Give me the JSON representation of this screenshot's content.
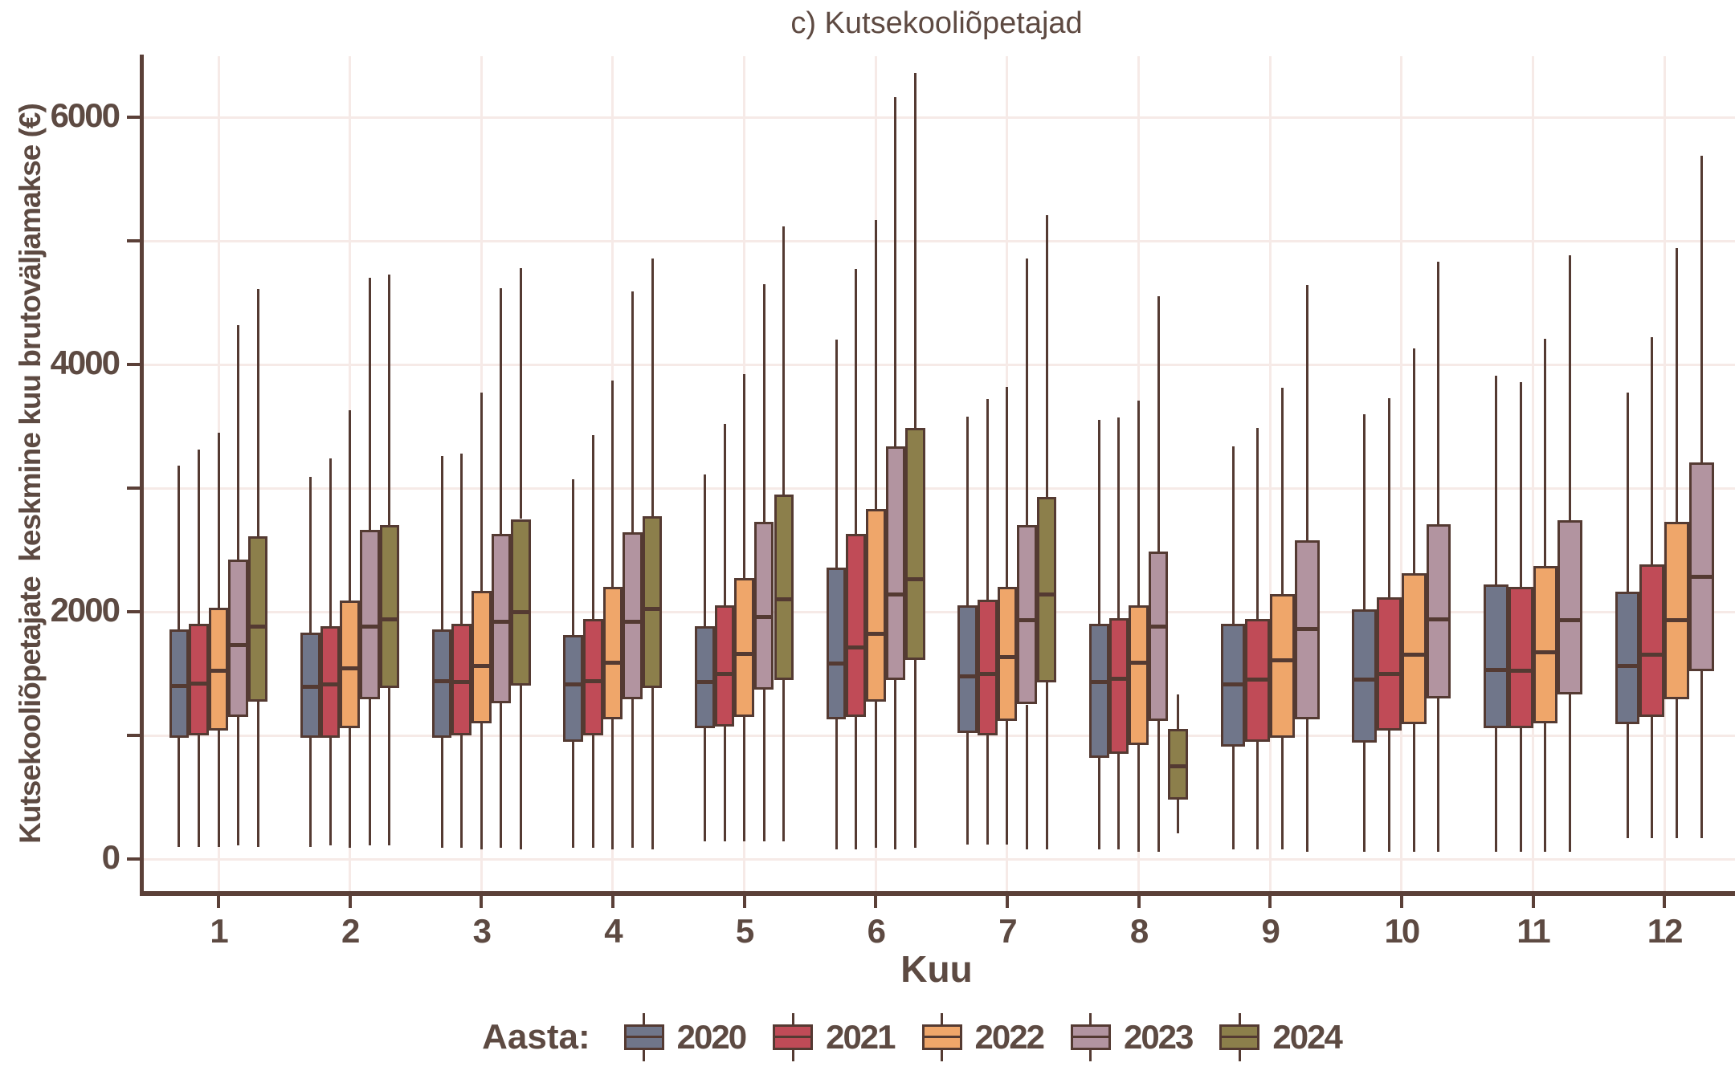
{
  "title": "c) Kutsekooliõpetajad",
  "axes": {
    "y_label": "Kutsekooliõpetajate  keskmine kuu brutoväljamakse (€)",
    "x_label": "Kuu",
    "y_tick_values": [
      0,
      2000,
      4000,
      6000
    ],
    "y_tick_labels": [
      "0",
      "2000",
      "4000",
      "6000"
    ],
    "y_gridline_values": [
      0,
      1000,
      2000,
      3000,
      4000,
      5000,
      6000
    ],
    "x_tick_labels": [
      "1",
      "2",
      "3",
      "4",
      "5",
      "6",
      "7",
      "8",
      "9",
      "10",
      "11",
      "12"
    ]
  },
  "legend": {
    "title": "Aasta:",
    "items": [
      {
        "label": "2020",
        "color": "#70768a"
      },
      {
        "label": "2021",
        "color": "#c04b57"
      },
      {
        "label": "2022",
        "color": "#efa66a"
      },
      {
        "label": "2023",
        "color": "#b294a0"
      },
      {
        "label": "2024",
        "color": "#8c7f4b"
      }
    ]
  },
  "colors": {
    "text": "#5d4a42",
    "axis": "#5b4038",
    "box_border": "#543a32",
    "gridline": "#f6eae7",
    "background": "#ffffff"
  },
  "chart_data": {
    "type": "boxplot",
    "title": "c) Kutsekooliõpetajad",
    "xlabel": "Kuu",
    "ylabel": "Kutsekooliõpetajate keskmine kuu brutoväljamakse (€)",
    "ylim": [
      0,
      6500
    ],
    "y_labeled_ticks": [
      0,
      2000,
      4000,
      6000
    ],
    "y_gridline_step": 1000,
    "grid": "on",
    "legend_position": "bottom",
    "legend_title": "Aasta:",
    "categories": [
      "1",
      "2",
      "3",
      "4",
      "5",
      "6",
      "7",
      "8",
      "9",
      "10",
      "11",
      "12"
    ],
    "stat_order": [
      "whisker_low",
      "q1",
      "median",
      "q3",
      "whisker_high"
    ],
    "series": [
      {
        "name": "2020",
        "color": "#70768a",
        "stats": [
          [
            100,
            980,
            1400,
            1860,
            3180
          ],
          [
            100,
            980,
            1390,
            1830,
            3090
          ],
          [
            90,
            980,
            1440,
            1860,
            3260
          ],
          [
            90,
            950,
            1410,
            1810,
            3070
          ],
          [
            140,
            1060,
            1430,
            1880,
            3110
          ],
          [
            80,
            1130,
            1580,
            2360,
            4200
          ],
          [
            120,
            1020,
            1480,
            2050,
            3580
          ],
          [
            80,
            820,
            1430,
            1900,
            3550
          ],
          [
            80,
            910,
            1410,
            1900,
            3340
          ],
          [
            60,
            940,
            1450,
            2020,
            3600
          ],
          [
            60,
            1060,
            1530,
            2220,
            3910
          ],
          [
            170,
            1090,
            1560,
            2160,
            3770
          ]
        ]
      },
      {
        "name": "2021",
        "color": "#c04b57",
        "stats": [
          [
            100,
            1000,
            1420,
            1900,
            3310
          ],
          [
            110,
            980,
            1410,
            1880,
            3240
          ],
          [
            90,
            1000,
            1430,
            1900,
            3280
          ],
          [
            90,
            1000,
            1440,
            1940,
            3430
          ],
          [
            140,
            1070,
            1500,
            2050,
            3520
          ],
          [
            80,
            1150,
            1710,
            2630,
            4770
          ],
          [
            120,
            1000,
            1500,
            2100,
            3720
          ],
          [
            80,
            850,
            1460,
            1950,
            3570
          ],
          [
            80,
            950,
            1450,
            1940,
            3490
          ],
          [
            60,
            1040,
            1500,
            2120,
            3730
          ],
          [
            60,
            1060,
            1520,
            2200,
            3860
          ],
          [
            170,
            1150,
            1650,
            2380,
            4220
          ]
        ]
      },
      {
        "name": "2022",
        "color": "#efa66a",
        "stats": [
          [
            100,
            1040,
            1520,
            2030,
            3450
          ],
          [
            90,
            1060,
            1540,
            2090,
            3630
          ],
          [
            80,
            1100,
            1560,
            2170,
            3770
          ],
          [
            80,
            1130,
            1590,
            2200,
            3870
          ],
          [
            140,
            1150,
            1660,
            2270,
            3920
          ],
          [
            90,
            1270,
            1820,
            2830,
            5170
          ],
          [
            120,
            1120,
            1630,
            2200,
            3820
          ],
          [
            60,
            920,
            1590,
            2050,
            3710
          ],
          [
            80,
            980,
            1610,
            2140,
            3810
          ],
          [
            60,
            1090,
            1650,
            2310,
            4130
          ],
          [
            60,
            1100,
            1670,
            2370,
            4210
          ],
          [
            170,
            1290,
            1930,
            2730,
            4940
          ]
        ]
      },
      {
        "name": "2023",
        "color": "#b294a0",
        "stats": [
          [
            110,
            1150,
            1730,
            2420,
            4320
          ],
          [
            110,
            1290,
            1880,
            2660,
            4700
          ],
          [
            90,
            1260,
            1920,
            2630,
            4620
          ],
          [
            90,
            1290,
            1920,
            2640,
            4590
          ],
          [
            140,
            1370,
            1960,
            2730,
            4650
          ],
          [
            80,
            1450,
            2140,
            3340,
            6160
          ],
          [
            80,
            1250,
            1930,
            2700,
            4860
          ],
          [
            60,
            1120,
            1880,
            2490,
            4550
          ],
          [
            60,
            1130,
            1860,
            2580,
            4640
          ],
          [
            60,
            1300,
            1940,
            2710,
            4830
          ],
          [
            60,
            1330,
            1930,
            2740,
            4880
          ],
          [
            170,
            1520,
            2280,
            3210,
            5690
          ]
        ]
      },
      {
        "name": "2024",
        "color": "#8c7f4b",
        "stats": [
          [
            100,
            1270,
            1880,
            2610,
            4610
          ],
          [
            110,
            1380,
            1940,
            2700,
            4730
          ],
          [
            80,
            1400,
            2000,
            2750,
            4780
          ],
          [
            80,
            1380,
            2020,
            2770,
            4860
          ],
          [
            140,
            1450,
            2100,
            2950,
            5120
          ],
          [
            90,
            1610,
            2260,
            3490,
            6360
          ],
          [
            80,
            1430,
            2140,
            2930,
            5210
          ],
          [
            210,
            480,
            750,
            1050,
            1330
          ],
          null,
          null,
          null,
          null
        ]
      }
    ]
  }
}
